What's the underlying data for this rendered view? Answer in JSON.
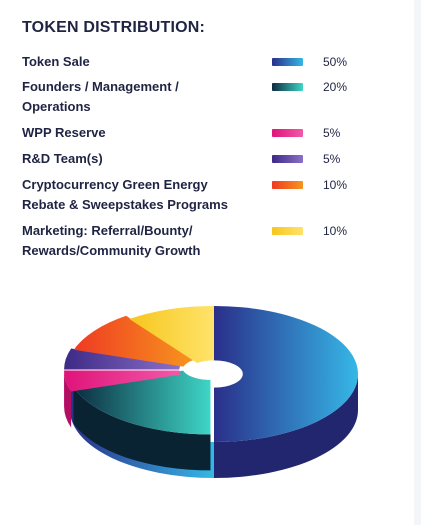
{
  "chart_data": {
    "type": "pie",
    "title": "TOKEN DISTRIBUTION:",
    "legend_placement": "top",
    "slices": [
      {
        "label": "Token Sale",
        "value": 50,
        "value_label": "50%",
        "colors": [
          "#2a2f8a",
          "#36b7e6"
        ]
      },
      {
        "label": "Founders / Management / Operations",
        "value": 20,
        "value_label": "20%",
        "colors": [
          "#0c2c40",
          "#3ed6c6"
        ]
      },
      {
        "label": "WPP Reserve",
        "value": 5,
        "value_label": "5%",
        "colors": [
          "#e0137a",
          "#f15aa8"
        ]
      },
      {
        "label": "R&D Team(s)",
        "value": 5,
        "value_label": "5%",
        "colors": [
          "#3d2a86",
          "#8b70c8"
        ]
      },
      {
        "label": "Cryptocurrency Green Energy Rebate & Sweepstakes Programs",
        "value": 10,
        "value_label": "10%",
        "colors": [
          "#ef3a23",
          "#f7951d"
        ]
      },
      {
        "label": "Marketing: Referral/Bounty/ Rewards/Community Growth",
        "value": 10,
        "value_label": "10%",
        "colors": [
          "#f6c61d",
          "#ffe36a"
        ]
      }
    ]
  }
}
